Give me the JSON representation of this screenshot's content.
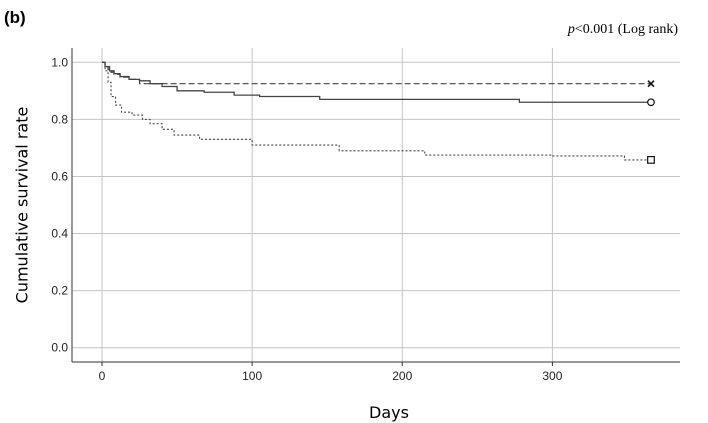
{
  "panel_label": "(b)",
  "annotation": {
    "p_italic": "p",
    "rest": "<0.001 (Log rank)"
  },
  "chart_data": {
    "type": "line",
    "step": true,
    "xlabel": "Days",
    "ylabel": "Cumulative survival rate",
    "xlim": [
      -20,
      385
    ],
    "ylim": [
      -0.05,
      1.05
    ],
    "xticks": [
      0,
      100,
      200,
      300
    ],
    "yticks": [
      0.0,
      0.2,
      0.4,
      0.6,
      0.8,
      1.0
    ],
    "ytick_labels": [
      "0.0",
      "0.2",
      "0.4",
      "0.6",
      "0.8",
      "1.0"
    ],
    "grid": true,
    "series": [
      {
        "line_style": "dashed",
        "end_marker": "x",
        "x": [
          0,
          2,
          4,
          6,
          8,
          12,
          18,
          25,
          365
        ],
        "y": [
          1.0,
          0.985,
          0.975,
          0.965,
          0.958,
          0.948,
          0.94,
          0.925,
          0.925
        ]
      },
      {
        "line_style": "solid",
        "end_marker": "circle",
        "x": [
          0,
          2,
          5,
          8,
          12,
          18,
          25,
          32,
          40,
          50,
          68,
          88,
          105,
          145,
          205,
          278,
          365
        ],
        "y": [
          1.0,
          0.985,
          0.97,
          0.96,
          0.95,
          0.94,
          0.935,
          0.925,
          0.915,
          0.9,
          0.895,
          0.885,
          0.88,
          0.87,
          0.87,
          0.86,
          0.86
        ]
      },
      {
        "line_style": "dotted",
        "end_marker": "square",
        "x": [
          0,
          2,
          4,
          6,
          9,
          13,
          20,
          27,
          32,
          40,
          48,
          65,
          100,
          140,
          158,
          178,
          215,
          240,
          300,
          348,
          365
        ],
        "y": [
          1.0,
          0.97,
          0.93,
          0.88,
          0.85,
          0.825,
          0.815,
          0.8,
          0.785,
          0.765,
          0.745,
          0.73,
          0.71,
          0.71,
          0.69,
          0.69,
          0.675,
          0.675,
          0.672,
          0.658,
          0.658
        ]
      }
    ]
  }
}
